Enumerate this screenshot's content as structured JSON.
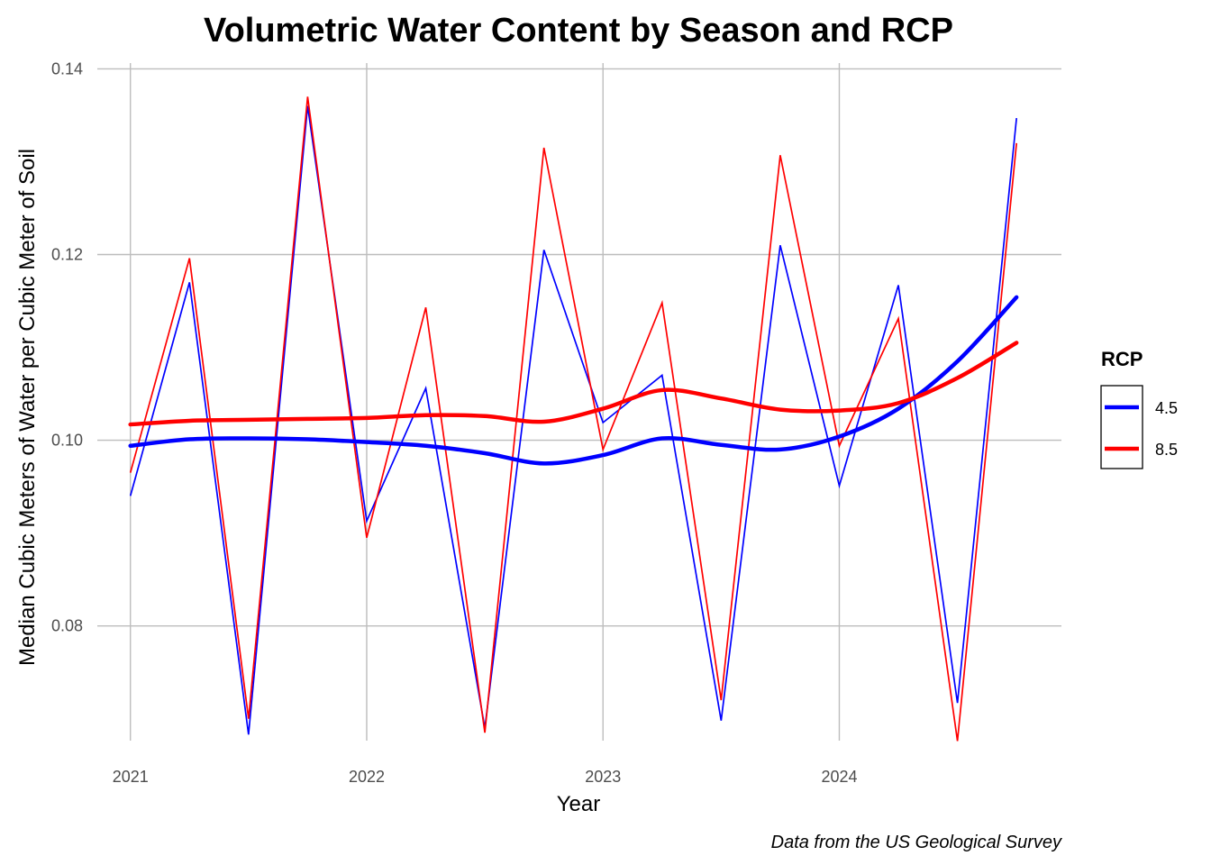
{
  "chart_data": {
    "type": "line",
    "title": "Volumetric Water Content by Season and RCP",
    "xlabel": "Year",
    "ylabel": "Median Cubic Meters of Water per Cubic Meter of Soil",
    "caption": "Data from the US Geological Survey",
    "xlim": [
      2020.86,
      2024.94
    ],
    "ylim": [
      0.0657,
      0.1414
    ],
    "x_ticks": [
      2021,
      2022,
      2023,
      2024
    ],
    "x_tick_labels": [
      "2021",
      "2022",
      "2023",
      "2024"
    ],
    "y_ticks": [
      0.08,
      0.1,
      0.12,
      0.14
    ],
    "y_tick_labels": [
      "0.08",
      "0.10",
      "0.12",
      "0.14"
    ],
    "grid": true,
    "legend": {
      "title": "RCP",
      "placement": "right",
      "entries": [
        "4.5",
        "8.5"
      ]
    },
    "x": [
      2021.0,
      2021.25,
      2021.5,
      2021.75,
      2022.0,
      2022.25,
      2022.5,
      2022.75,
      2023.0,
      2023.25,
      2023.5,
      2023.75,
      2024.0,
      2024.25,
      2024.5,
      2024.75
    ],
    "series": [
      {
        "name": "4.5",
        "color": "#0000ff",
        "values": [
          0.094,
          0.117,
          0.0683,
          0.136,
          0.0913,
          0.1056,
          0.069,
          0.1205,
          0.1019,
          0.107,
          0.0698,
          0.121,
          0.0951,
          0.1167,
          0.0717,
          0.1347
        ],
        "smooth": [
          [
            2021.0,
            0.0994
          ],
          [
            2021.25,
            0.1001
          ],
          [
            2021.5,
            0.1002
          ],
          [
            2021.75,
            0.1001
          ],
          [
            2022.0,
            0.0998
          ],
          [
            2022.25,
            0.0994
          ],
          [
            2022.5,
            0.0986
          ],
          [
            2022.75,
            0.0975
          ],
          [
            2023.0,
            0.0984
          ],
          [
            2023.25,
            0.1002
          ],
          [
            2023.5,
            0.0995
          ],
          [
            2023.75,
            0.099
          ],
          [
            2024.0,
            0.1004
          ],
          [
            2024.25,
            0.1034
          ],
          [
            2024.5,
            0.1085
          ],
          [
            2024.75,
            0.1154
          ]
        ]
      },
      {
        "name": "8.5",
        "color": "#ff0000",
        "values": [
          0.0965,
          0.1196,
          0.07,
          0.137,
          0.0895,
          0.1143,
          0.0685,
          0.1315,
          0.099,
          0.1148,
          0.072,
          0.1307,
          0.0994,
          0.1131,
          0.0676,
          0.132
        ],
        "smooth": [
          [
            2021.0,
            0.1017
          ],
          [
            2021.25,
            0.1021
          ],
          [
            2021.5,
            0.1022
          ],
          [
            2021.75,
            0.1023
          ],
          [
            2022.0,
            0.1024
          ],
          [
            2022.25,
            0.1027
          ],
          [
            2022.5,
            0.1026
          ],
          [
            2022.75,
            0.102
          ],
          [
            2023.0,
            0.1034
          ],
          [
            2023.25,
            0.1054
          ],
          [
            2023.5,
            0.1045
          ],
          [
            2023.75,
            0.1033
          ],
          [
            2024.0,
            0.1032
          ],
          [
            2024.25,
            0.104
          ],
          [
            2024.5,
            0.1067
          ],
          [
            2024.75,
            0.1105
          ]
        ]
      }
    ]
  }
}
